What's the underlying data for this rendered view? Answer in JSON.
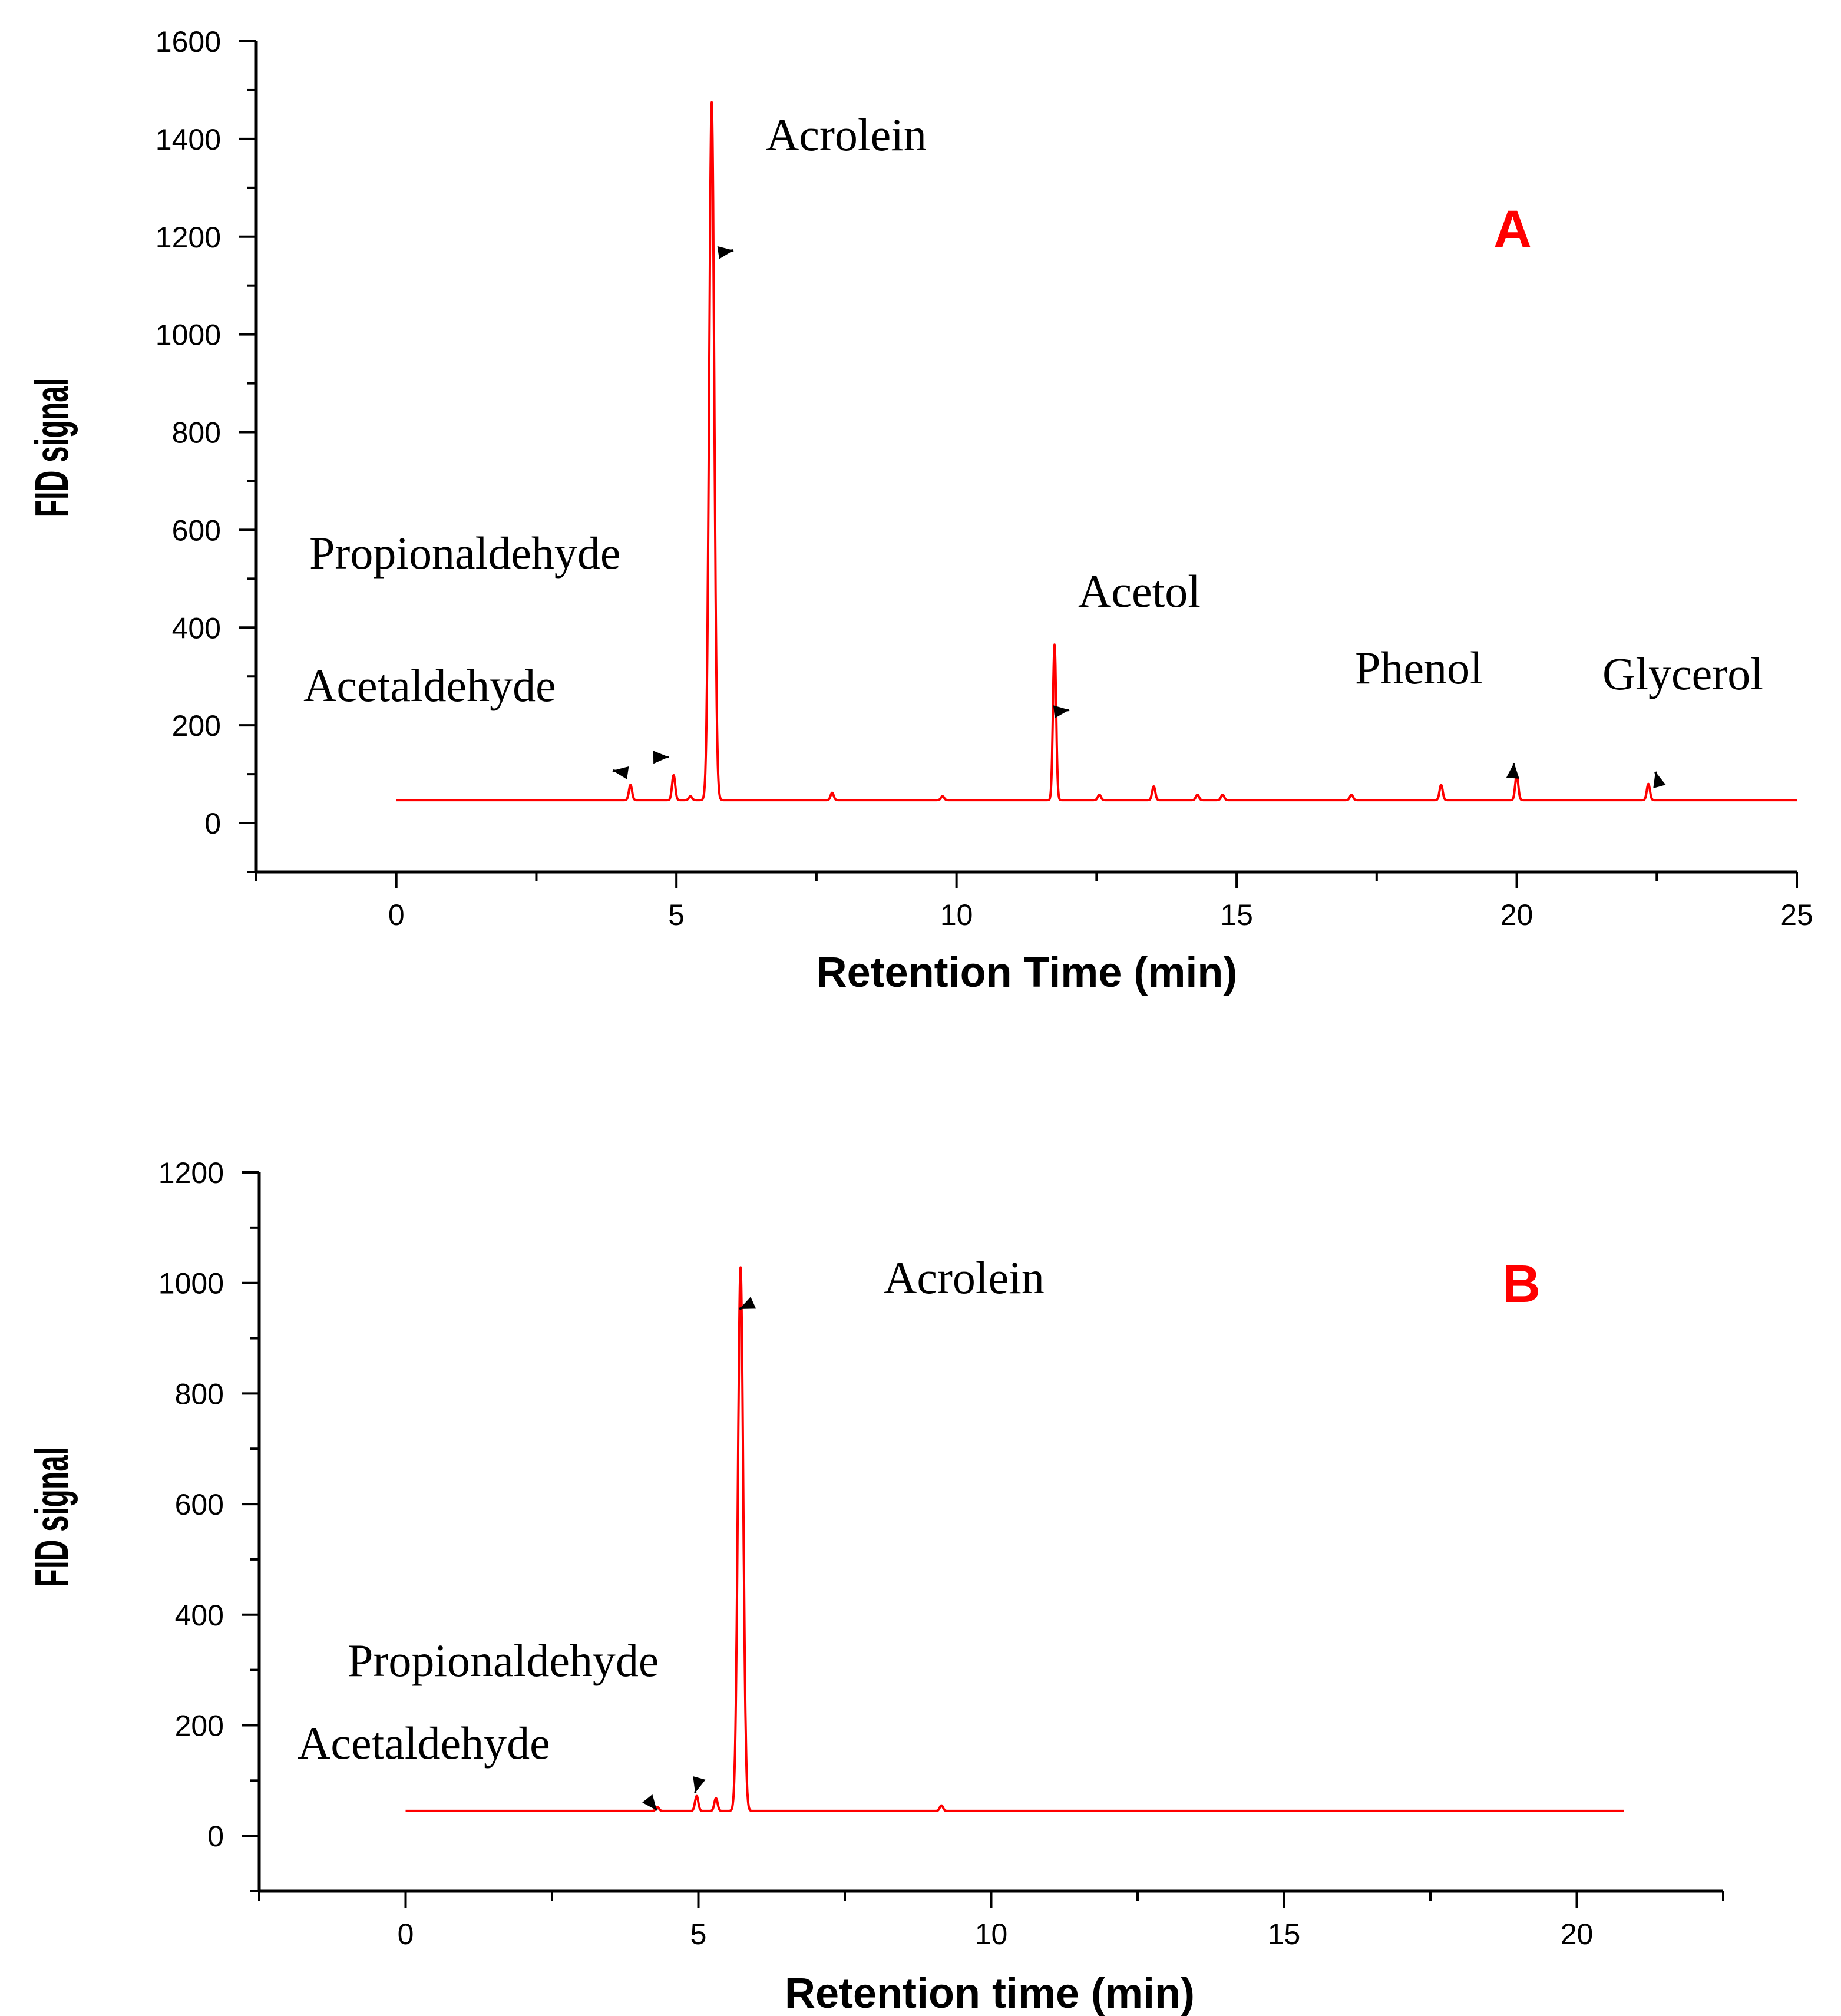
{
  "chart_data": [
    {
      "type": "line",
      "panel_label": "A",
      "xlabel": "Retention Time (min)",
      "ylabel": "FID signal",
      "xlim": [
        -2.5,
        25
      ],
      "ylim": [
        -100,
        1600
      ],
      "xticks": [
        0,
        5,
        10,
        15,
        20,
        25
      ],
      "yticks": [
        0,
        200,
        400,
        600,
        800,
        1000,
        1200,
        1400,
        1600
      ],
      "grid": false,
      "series_color": "#ff0000",
      "panel_label_color": "#ff0000",
      "series": [
        {
          "name": "FID signal",
          "baseline": 47,
          "x_range": [
            0,
            25
          ],
          "peaks": [
            {
              "x": 4.18,
              "y": 78
            },
            {
              "x": 4.95,
              "y": 98
            },
            {
              "x": 5.25,
              "y": 55
            },
            {
              "x": 5.63,
              "y": 1475
            },
            {
              "x": 7.78,
              "y": 62
            },
            {
              "x": 9.75,
              "y": 55
            },
            {
              "x": 11.75,
              "y": 365
            },
            {
              "x": 12.55,
              "y": 58
            },
            {
              "x": 13.52,
              "y": 75
            },
            {
              "x": 14.3,
              "y": 58
            },
            {
              "x": 14.75,
              "y": 58
            },
            {
              "x": 17.05,
              "y": 58
            },
            {
              "x": 18.65,
              "y": 78
            },
            {
              "x": 20.0,
              "y": 98
            },
            {
              "x": 22.35,
              "y": 80
            }
          ]
        }
      ],
      "annotations": [
        {
          "text": "Acetaldehyde",
          "target": [
            4.0,
            105
          ]
        },
        {
          "text": "Propionaldehyde",
          "target": [
            4.8,
            135
          ]
        },
        {
          "text": "Acrolein",
          "target": [
            5.9,
            1170
          ]
        },
        {
          "text": "Acetol",
          "target": [
            11.9,
            230
          ]
        },
        {
          "text": "Phenol",
          "target": [
            19.95,
            120
          ]
        },
        {
          "text": "Glycerol",
          "target": [
            22.5,
            95
          ]
        }
      ]
    },
    {
      "type": "line",
      "panel_label": "B",
      "xlabel": "Retention time (min)",
      "ylabel": "FID signal",
      "xlim": [
        -2.5,
        22.5
      ],
      "ylim": [
        -100,
        1200
      ],
      "xticks": [
        0,
        5,
        10,
        15,
        20
      ],
      "yticks": [
        0,
        200,
        400,
        600,
        800,
        1000,
        1200
      ],
      "grid": false,
      "series_color": "#ff0000",
      "panel_label_color": "#ff0000",
      "series": [
        {
          "name": "FID signal",
          "baseline": 45,
          "x_range": [
            0,
            20.8
          ],
          "peaks": [
            {
              "x": 4.3,
              "y": 52
            },
            {
              "x": 4.97,
              "y": 72
            },
            {
              "x": 5.3,
              "y": 68
            },
            {
              "x": 5.72,
              "y": 1028
            },
            {
              "x": 9.15,
              "y": 55
            }
          ]
        }
      ],
      "annotations": [
        {
          "text": "Acetaldehyde",
          "target": [
            4.2,
            58
          ]
        },
        {
          "text": "Propionaldehyde",
          "target": [
            4.95,
            80
          ]
        },
        {
          "text": "Acrolein",
          "target": [
            5.85,
            960
          ]
        }
      ]
    }
  ]
}
